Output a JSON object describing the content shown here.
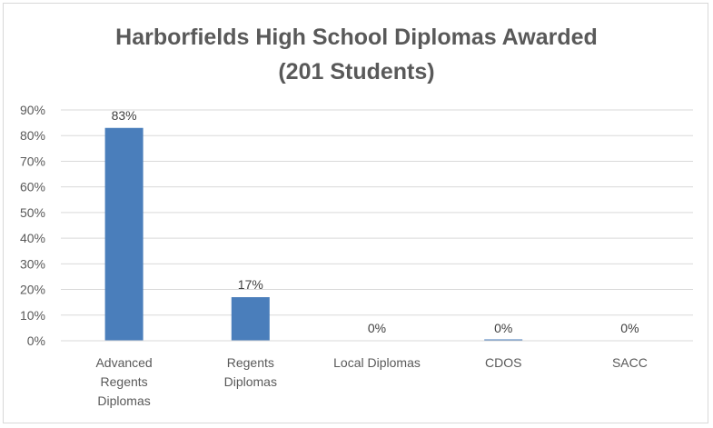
{
  "chart_data": {
    "type": "bar",
    "title_lines": [
      "Harborfields High School Diplomas Awarded",
      "(201 Students)"
    ],
    "categories": [
      [
        "Advanced",
        "Regents",
        "Diplomas"
      ],
      [
        "Regents",
        "Diplomas"
      ],
      [
        "Local Diplomas"
      ],
      [
        "CDOS"
      ],
      [
        "SACC"
      ]
    ],
    "values": [
      83,
      17,
      0,
      0,
      0
    ],
    "data_labels": [
      "83%",
      "17%",
      "0%",
      "0%",
      "0%"
    ],
    "y_ticks": [
      "0%",
      "10%",
      "20%",
      "30%",
      "40%",
      "50%",
      "60%",
      "70%",
      "80%",
      "90%"
    ],
    "ylim": [
      0,
      90
    ],
    "grid": true,
    "bar_color": "#4a7ebb",
    "grid_color": "#d9d9d9"
  }
}
